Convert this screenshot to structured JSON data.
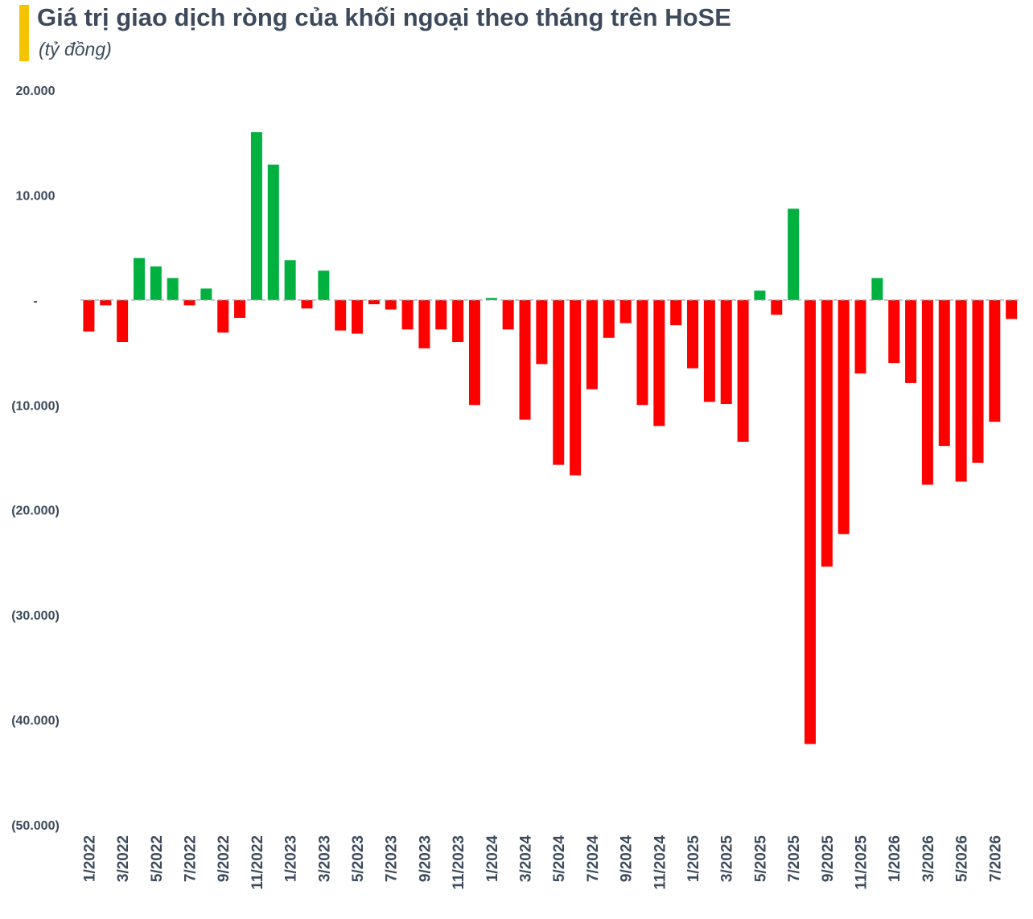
{
  "header": {
    "title": "Giá trị giao dịch ròng của khối ngoại theo tháng trên HoSE",
    "subtitle": "(tỷ đồng)"
  },
  "colors": {
    "positive": "#00b140",
    "negative": "#ff0000",
    "accent": "#f5c400",
    "text": "#3d4a5c"
  },
  "chart_data": {
    "type": "bar",
    "title": "Giá trị giao dịch ròng của khối ngoại theo tháng trên HoSE",
    "subtitle": "(tỷ đồng)",
    "ylim": [
      -50000,
      20000
    ],
    "yticks": [
      {
        "value": 20000,
        "label": "20.000"
      },
      {
        "value": 10000,
        "label": "10.000"
      },
      {
        "value": 0,
        "label": "-"
      },
      {
        "value": -10000,
        "label": "(10.000)"
      },
      {
        "value": -20000,
        "label": "(20.000)"
      },
      {
        "value": -30000,
        "label": "(30.000)"
      },
      {
        "value": -40000,
        "label": "(40.000)"
      },
      {
        "value": -50000,
        "label": "(50.000)"
      }
    ],
    "grid": false,
    "categories": [
      "1/2022",
      "2/2022",
      "3/2022",
      "4/2022",
      "5/2022",
      "6/2022",
      "7/2022",
      "8/2022",
      "9/2022",
      "10/2022",
      "11/2022",
      "12/2022",
      "1/2023",
      "2/2023",
      "3/2023",
      "4/2023",
      "5/2023",
      "6/2023",
      "7/2023",
      "8/2023",
      "9/2023",
      "10/2023",
      "11/2023",
      "12/2023",
      "1/2024",
      "2/2024",
      "3/2024",
      "4/2024",
      "5/2024",
      "6/2024",
      "7/2024",
      "8/2024",
      "9/2024",
      "10/2024",
      "11/2024",
      "12/2024",
      "1/2025",
      "2/2025",
      "3/2025",
      "4/2025",
      "5/2025",
      "6/2025",
      "7/2025",
      "8/2025",
      "9/2025",
      "10/2025",
      "11/2025",
      "12/2025",
      "1/2026",
      "2/2026",
      "3/2026",
      "4/2026",
      "5/2026",
      "6/2026",
      "7/2026",
      "8/2026"
    ],
    "values": [
      -3000,
      -500,
      -4000,
      4000,
      3200,
      2100,
      -500,
      1100,
      -3100,
      -1700,
      16000,
      12900,
      3800,
      -800,
      2800,
      -2900,
      -3200,
      -400,
      -900,
      -2800,
      -4600,
      -2800,
      -4000,
      -10000,
      200,
      -2800,
      -11400,
      -6100,
      -15700,
      -16700,
      -8500,
      -3600,
      -2200,
      -10000,
      -12000,
      -2400,
      -6500,
      -9700,
      -9900,
      -13500,
      900,
      -1400,
      8700,
      -42300,
      -25400,
      -22300,
      -7000,
      2100,
      -6000,
      -7900,
      -17600,
      -13900,
      -17300,
      -15500,
      -11600,
      -1800
    ],
    "xtick_labels": [
      "1/2022",
      "3/2022",
      "5/2022",
      "7/2022",
      "9/2022",
      "11/2022",
      "1/2023",
      "3/2023",
      "5/2023",
      "7/2023",
      "9/2023",
      "11/2023",
      "1/2024",
      "3/2024",
      "5/2024",
      "7/2024",
      "9/2024",
      "11/2024",
      "1/2025",
      "3/2025",
      "5/2025",
      "7/2025",
      "9/2025",
      "11/2025",
      "1/2026",
      "3/2026",
      "5/2026",
      "7/2026"
    ]
  }
}
